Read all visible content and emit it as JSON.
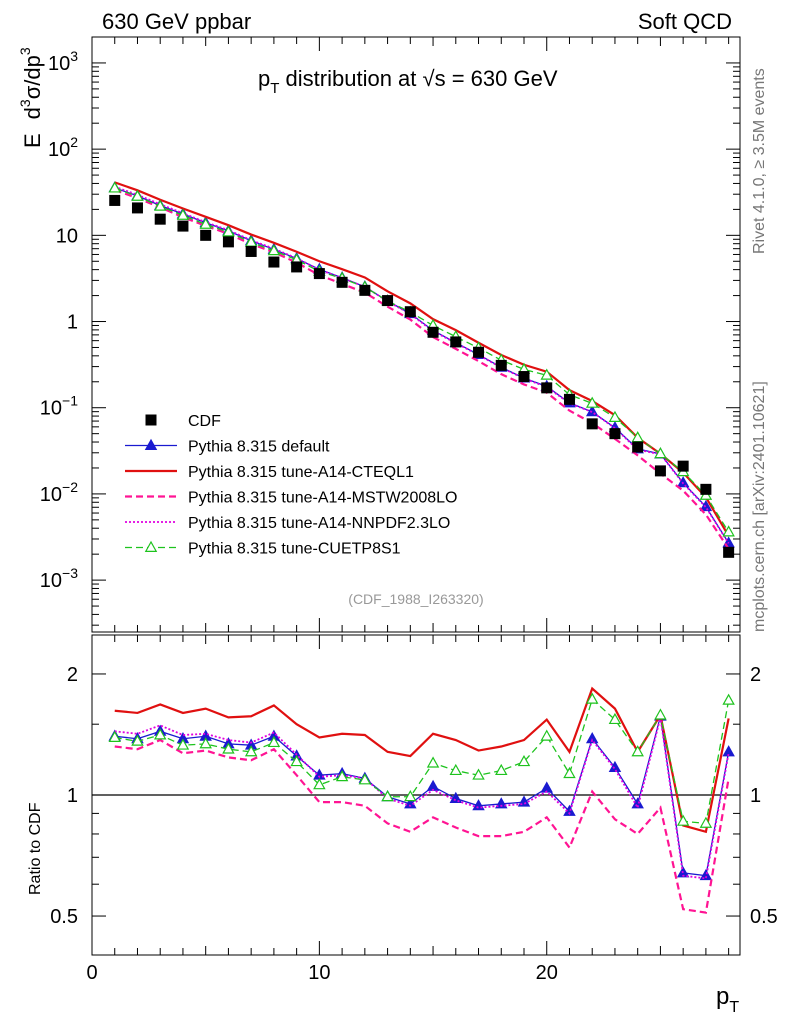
{
  "header": {
    "left": "630 GeV ppbar",
    "right": "Soft QCD"
  },
  "side": {
    "rivet": "Rivet 4.1.0, ≥ 3.5M events",
    "mcplots": "mcplots.cern.ch [arXiv:2401.10621]"
  },
  "colors": {
    "cdf": "#000000",
    "default": "#1a1ad0",
    "cteql1": "#e01010",
    "mstw": "#ff1493",
    "nnpdf": "#e000e0",
    "cuetp8s1": "#1ec31e"
  },
  "chart_data": {
    "type": "line",
    "title_parts": {
      "p": "p",
      "T": "T",
      "rest": " distribution at ",
      "sqrt": "√s",
      "energy": " = 630 GeV"
    },
    "ylabel_parts": {
      "E": "E",
      "d": "d",
      "three": "3",
      "sigma_dp": "σ/dp",
      "three2": "3"
    },
    "xlabel_parts": {
      "p": "p",
      "T": "T"
    },
    "ratio_ylabel": "Ratio to CDF",
    "watermark": "(CDF_1988_I263320)",
    "xlim": [
      0,
      28.5
    ],
    "ylim": [
      0.00025,
      2000
    ],
    "ratio_ylim": [
      0.4,
      2.5
    ],
    "x_tick_labels": [
      "0",
      "10",
      "20"
    ],
    "y_tick_labels": [
      {
        "base": "10",
        "exp": "3"
      },
      {
        "base": "10",
        "exp": "2"
      },
      {
        "base": "10",
        "exp": ""
      },
      {
        "base": "1",
        "exp": ""
      },
      {
        "base": "10",
        "exp": "−1"
      },
      {
        "base": "10",
        "exp": "−2"
      },
      {
        "base": "10",
        "exp": "−3"
      }
    ],
    "ratio_tick_labels": [
      "0.5",
      "1",
      "2"
    ],
    "ratio_tick_labels_right": [
      "0.5",
      "1",
      "2"
    ],
    "x": [
      1,
      2,
      3,
      4,
      5,
      6,
      7,
      8,
      9,
      10,
      11,
      12,
      13,
      14,
      15,
      16,
      17,
      18,
      19,
      20,
      21,
      22,
      23,
      24,
      25,
      26,
      27,
      28
    ],
    "cdf": [
      25.4,
      20.8,
      15.4,
      12.8,
      10.0,
      8.4,
      6.5,
      4.9,
      4.3,
      3.6,
      2.85,
      2.3,
      1.75,
      1.3,
      0.75,
      0.58,
      0.44,
      0.31,
      0.23,
      0.17,
      0.125,
      0.065,
      0.05,
      0.035,
      0.0185,
      0.021,
      0.0113,
      0.0021
    ],
    "series": [
      {
        "key": "default",
        "name": "Pythia 8.315 default",
        "style": "solid",
        "marker": "triangle-filled",
        "ratio": [
          1.4,
          1.38,
          1.44,
          1.38,
          1.4,
          1.34,
          1.33,
          1.4,
          1.25,
          1.12,
          1.13,
          1.1,
          0.99,
          0.95,
          1.05,
          0.98,
          0.94,
          0.95,
          0.96,
          1.04,
          0.91,
          1.38,
          1.17,
          0.95,
          1.57,
          0.64,
          0.63,
          1.28
        ]
      },
      {
        "key": "cteql1",
        "name": "Pythia 8.315 tune-A14-CTEQL1",
        "style": "solid",
        "marker": "none",
        "ratio": [
          1.62,
          1.6,
          1.68,
          1.6,
          1.64,
          1.56,
          1.57,
          1.67,
          1.5,
          1.39,
          1.42,
          1.41,
          1.28,
          1.25,
          1.42,
          1.37,
          1.29,
          1.32,
          1.37,
          1.54,
          1.28,
          1.84,
          1.64,
          1.28,
          1.58,
          0.84,
          0.81,
          1.55
        ]
      },
      {
        "key": "mstw",
        "name": "Pythia 8.315 tune-A14-MSTW2008LO",
        "style": "dashed",
        "marker": "none",
        "ratio": [
          1.32,
          1.3,
          1.37,
          1.27,
          1.29,
          1.24,
          1.22,
          1.3,
          1.12,
          0.96,
          0.96,
          0.94,
          0.85,
          0.81,
          0.88,
          0.83,
          0.79,
          0.79,
          0.81,
          0.88,
          0.74,
          1.02,
          0.87,
          0.8,
          0.93,
          0.52,
          0.51,
          1.1
        ]
      },
      {
        "key": "nnpdf",
        "name": "Pythia 8.315 tune-A14-NNPDF2.3LO",
        "style": "dotted",
        "marker": "none",
        "ratio": [
          1.44,
          1.42,
          1.49,
          1.41,
          1.42,
          1.37,
          1.35,
          1.43,
          1.26,
          1.11,
          1.12,
          1.1,
          0.98,
          0.94,
          1.03,
          0.97,
          0.93,
          0.94,
          0.95,
          1.02,
          0.9,
          1.37,
          1.16,
          0.93,
          1.56,
          0.63,
          0.62,
          1.27
        ]
      },
      {
        "key": "cuetp8s1",
        "name": "Pythia 8.315 tune-CUETP8S1",
        "style": "dashed",
        "marker": "triangle-open",
        "ratio": [
          1.39,
          1.36,
          1.41,
          1.33,
          1.34,
          1.3,
          1.28,
          1.35,
          1.21,
          1.06,
          1.11,
          1.09,
          0.99,
          0.99,
          1.2,
          1.15,
          1.12,
          1.15,
          1.21,
          1.4,
          1.13,
          1.73,
          1.54,
          1.28,
          1.58,
          0.86,
          0.85,
          1.72
        ]
      }
    ],
    "legend": [
      "CDF",
      "Pythia 8.315 default",
      "Pythia 8.315 tune-A14-CTEQL1",
      "Pythia 8.315 tune-A14-MSTW2008LO",
      "Pythia 8.315 tune-A14-NNPDF2.3LO",
      "Pythia 8.315 tune-CUETP8S1"
    ]
  }
}
